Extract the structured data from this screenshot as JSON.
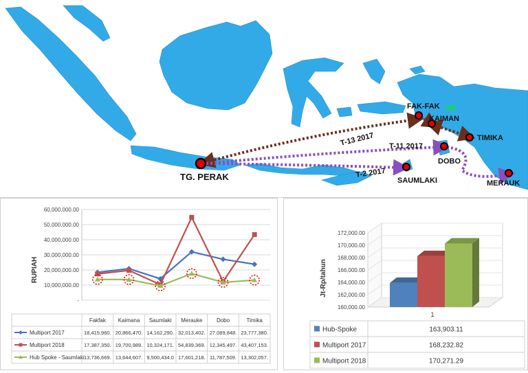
{
  "map": {
    "route_labels": [
      "T-13 2017",
      "T-11 2017",
      "T-2 2017"
    ],
    "ports": [
      "TG. PERAK",
      "FAK-FAK",
      "KAIMAN",
      "TIMIKA",
      "DOBO",
      "SAUMLAKI",
      "MERAUK"
    ],
    "colors": {
      "land": "#33aae8",
      "route_dark": "#6b2e1c",
      "route_purple": "#8a4fbf",
      "port": "#e00000"
    }
  },
  "chart_data": [
    {
      "type": "line",
      "ylabel": "RUPIAH",
      "ylim": [
        0,
        60000000
      ],
      "y_ticks": [
        "60,000,000.00",
        "50,000,000.00",
        "40,000,000.00",
        "30,000,000.00",
        "20,000,000.00",
        "10,000,000.00",
        "-"
      ],
      "categories": [
        "Fakfak",
        "Kaimana",
        "Saumlaki",
        "Merauke",
        "Dobo",
        "Timika"
      ],
      "series": [
        {
          "name": "Multiport 2017",
          "color": "#4472c4",
          "values": [
            18415960,
            20866470,
            14162290,
            32013402,
            27089848,
            23777380
          ],
          "cells": [
            "18,415,960.",
            "20,866,470.",
            "14,162,290.",
            "32,013,402.",
            "27,089,848.",
            "23,777,380."
          ]
        },
        {
          "name": "Multiport 2018",
          "color": "#c0504d",
          "values": [
            17387350,
            19700989,
            10324171,
            54839369,
            12345497,
            43407153
          ],
          "cells": [
            "17,387,350.",
            "19,700,989.",
            "10,324,171.",
            "54,839,369.",
            "12,345,497.",
            "43,407,153."
          ]
        },
        {
          "name": "Hub Spoke - Saumlaki",
          "color": "#9bbb59",
          "values": [
            13736669,
            13644607,
            9500434,
            17601218,
            11787509,
            13302057
          ],
          "cells": [
            "13,736,669.",
            "13,644,607.",
            "9,500,434.0",
            "17,601,218.",
            "11,787,509.",
            "13,302,057."
          ]
        }
      ],
      "highlight": "red dotted circles on Hub Spoke - Saumlaki points",
      "grid": true,
      "legend": "data table below chart"
    },
    {
      "type": "bar",
      "ylabel": "Jt-Rp/tahun",
      "ylim": [
        160000,
        172000
      ],
      "y_ticks": [
        "172,000.00",
        "170,000.00",
        "168,000.00",
        "166,000.00",
        "164,000.00",
        "162,000.00",
        "160,000.00"
      ],
      "categories": [
        "1"
      ],
      "series": [
        {
          "name": "Hub-Spoke",
          "color": "#4f81bd",
          "value": 163903.11,
          "value_label": "163,903.11"
        },
        {
          "name": "Multiport 2017",
          "color": "#c0504d",
          "value": 168232.82,
          "value_label": "168,232.82"
        },
        {
          "name": "Multiport 2018",
          "color": "#9bbb59",
          "value": 170271.29,
          "value_label": "170,271.29"
        }
      ],
      "style": "3d",
      "legend": "data table below chart"
    }
  ]
}
